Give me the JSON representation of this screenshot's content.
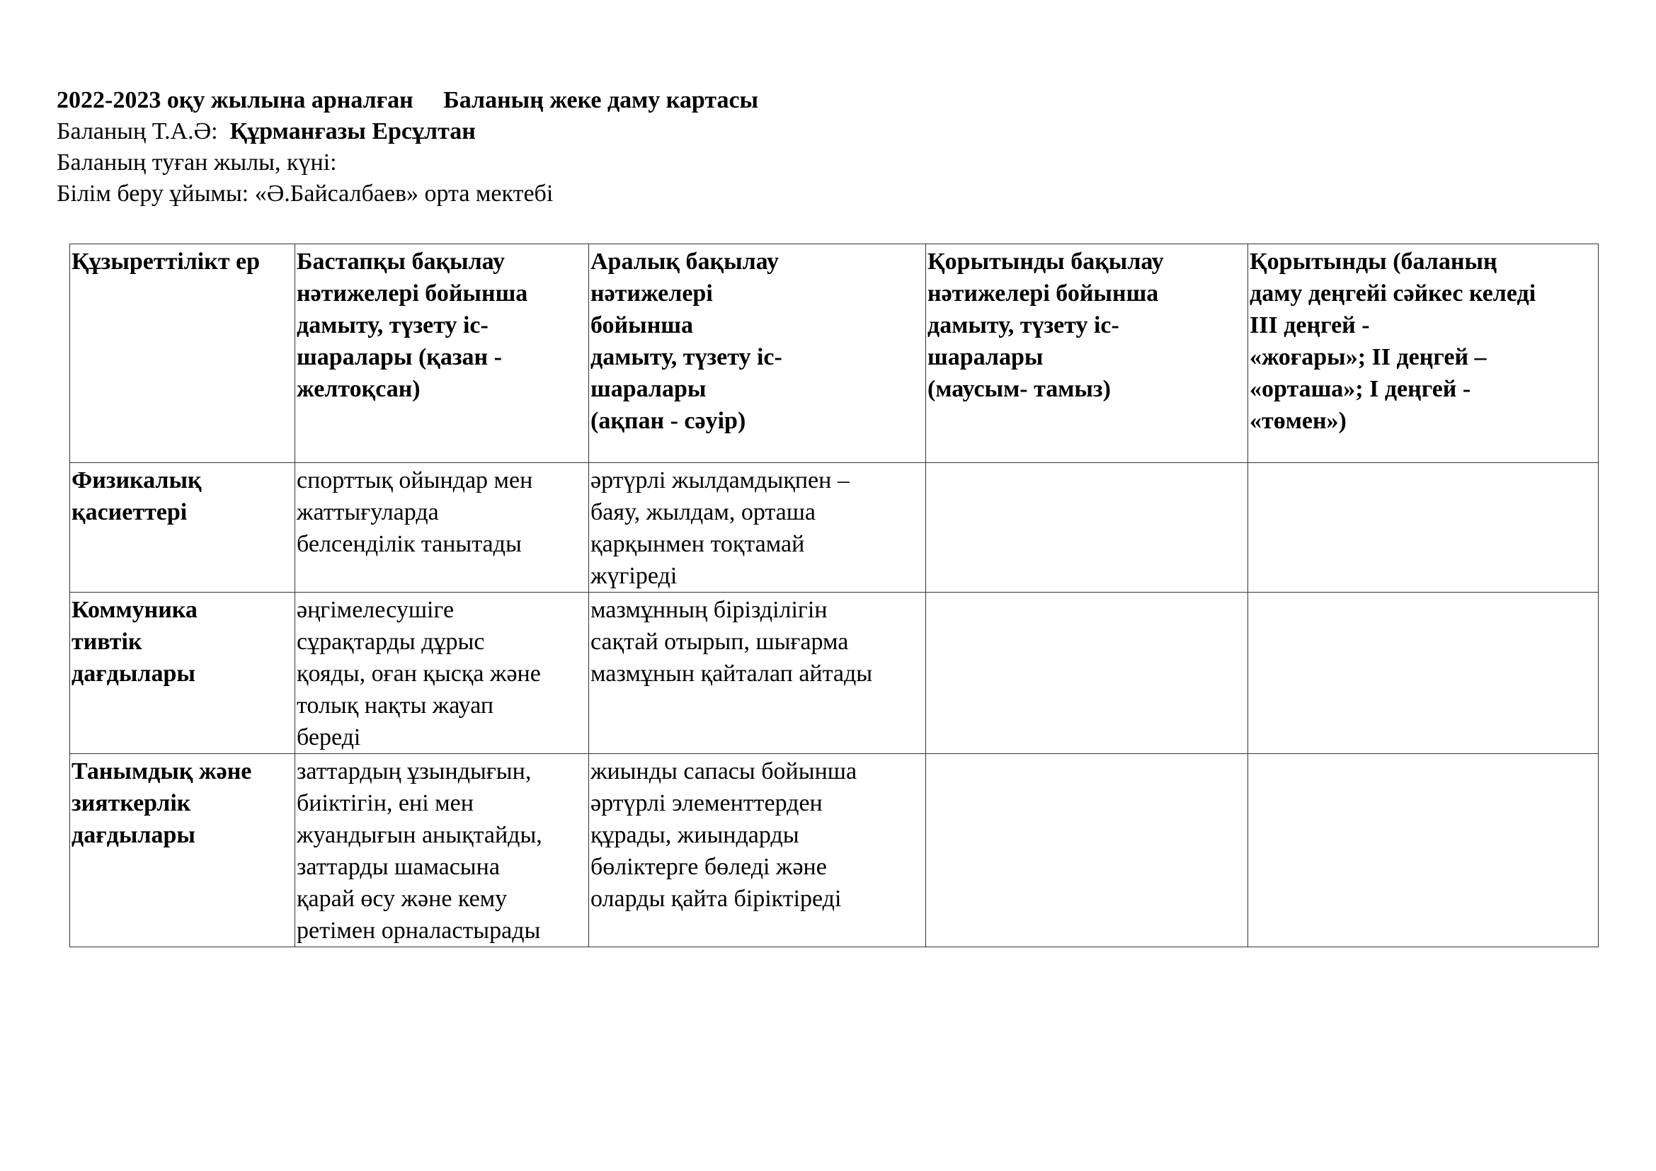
{
  "header": {
    "year_title": "2022-2023 оқу жылына арналған",
    "doc_title": "Баланың жеке даму картасы",
    "name_label": "Баланың Т.А.Ә:",
    "name_value": "Құрманғазы Ерсұлтан",
    "birth_label": "Баланың туған жылы, күні:",
    "org_label": "Білім беру ұйымы: «Ә.Байсалбаев» орта мектебі"
  },
  "table": {
    "columns": [
      "Құзыреттілікт ер",
      "Бастапқы бақылау\nнәтижелері бойынша\nдамыту, түзету іс-\nшаралары (қазан -\nжелтоқсан)",
      "Аралық бақылау\nнәтижелері\nбойынша\nдамыту, түзету іс-\nшаралары\n(ақпан - сәуір)",
      "Қорытынды бақылау\nнәтижелері бойынша\nдамыту, түзету іс-\nшаралары\n(маусым- тамыз)",
      "Қорытынды (баланың\nдаму деңгейі сәйкес келеді\nIII деңгей -\n«жоғары»;  II деңгей –\n«орташа»;   I деңгей -\n«төмен»)"
    ],
    "rows": [
      {
        "competency": "Физикалық\nқасиеттері",
        "initial": "спорттық ойындар мен\nжаттығуларда\nбелсенділік танытады",
        "interim": "әртүрлі жылдамдықпен –\nбаяу, жылдам, орташа\nқарқынмен тоқтамай\nжүгіреді",
        "final": "",
        "result": ""
      },
      {
        "competency": "Коммуника\nтивтік\nдағдылары",
        "initial": "әңгімелесушіге\nсұрақтарды дұрыс\nқояды, оған қысқа және\nтолық нақты жауап\nбереді",
        "interim": "мазмұнның бірізділігін\nсақтай отырып, шығарма\nмазмұнын қайталап айтады",
        "final": "",
        "result": ""
      },
      {
        "competency": "Танымдық және\nзияткерлік\nдағдылары",
        "initial": "заттардың ұзындығын,\nбиіктігін, ені мен\nжуандығын анықтайды,\nзаттарды шамасына\nқарай өсу және кему\nретімен орналастырады",
        "interim": "жиынды сапасы бойынша\nәртүрлі элементтерден\nқұрады,  жиындарды\nбөліктерге бөледі және\nоларды қайта біріктіреді",
        "final": "",
        "result": ""
      }
    ]
  }
}
